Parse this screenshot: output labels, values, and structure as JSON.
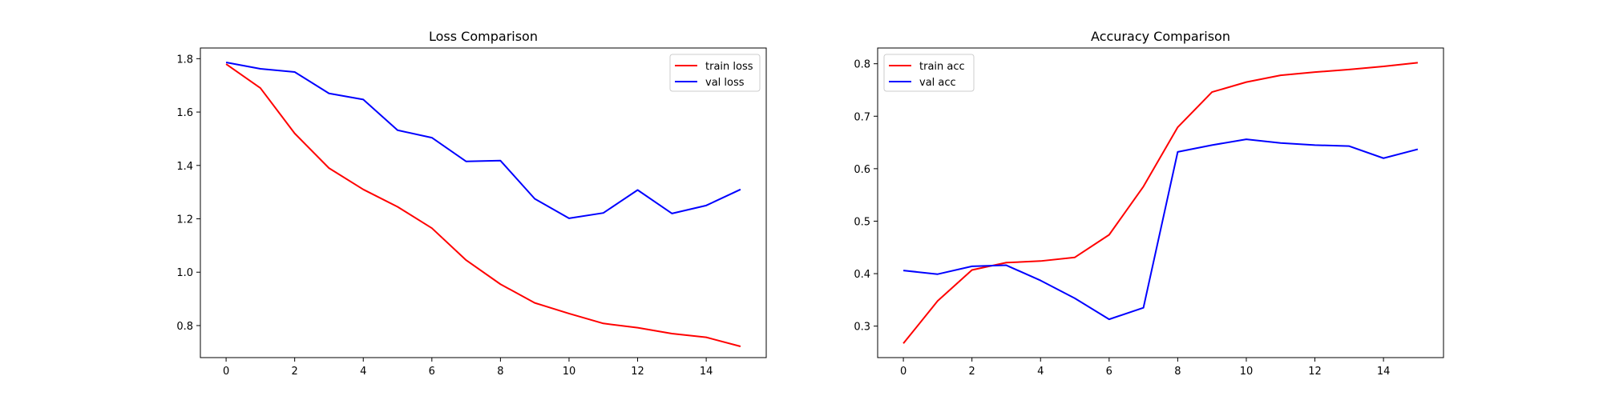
{
  "chart_data": [
    {
      "type": "line",
      "title": "Loss Comparison",
      "xlabel": "",
      "ylabel": "",
      "xlim": [
        -0.75,
        15.75
      ],
      "ylim": [
        0.68,
        1.84
      ],
      "xticks": [
        0,
        2,
        4,
        6,
        8,
        10,
        12,
        14
      ],
      "yticks": [
        0.8,
        1.0,
        1.2,
        1.4,
        1.6,
        1.8
      ],
      "ytick_labels": [
        "0.8",
        "1.0",
        "1.2",
        "1.4",
        "1.6",
        "1.8"
      ],
      "legend_position": "upper right",
      "grid": false,
      "x": [
        0,
        1,
        2,
        3,
        4,
        5,
        6,
        7,
        8,
        9,
        10,
        11,
        12,
        13,
        14,
        15
      ],
      "series": [
        {
          "name": "train loss",
          "color": "#ff0000",
          "values": [
            1.78,
            1.69,
            1.52,
            1.39,
            1.31,
            1.245,
            1.165,
            1.045,
            0.955,
            0.885,
            0.845,
            0.808,
            0.792,
            0.77,
            0.756,
            0.722
          ]
        },
        {
          "name": "val loss",
          "color": "#0000ff",
          "values": [
            1.786,
            1.762,
            1.75,
            1.67,
            1.647,
            1.532,
            1.504,
            1.415,
            1.418,
            1.275,
            1.202,
            1.222,
            1.308,
            1.22,
            1.25,
            1.31
          ]
        }
      ]
    },
    {
      "type": "line",
      "title": "Accuracy Comparison",
      "xlabel": "",
      "ylabel": "",
      "xlim": [
        -0.75,
        15.75
      ],
      "ylim": [
        0.24,
        0.83
      ],
      "xticks": [
        0,
        2,
        4,
        6,
        8,
        10,
        12,
        14
      ],
      "yticks": [
        0.3,
        0.4,
        0.5,
        0.6,
        0.7,
        0.8
      ],
      "ytick_labels": [
        "0.3",
        "0.4",
        "0.5",
        "0.6",
        "0.7",
        "0.8"
      ],
      "legend_position": "upper left",
      "grid": false,
      "x": [
        0,
        1,
        2,
        3,
        4,
        5,
        6,
        7,
        8,
        9,
        10,
        11,
        12,
        13,
        14,
        15
      ],
      "series": [
        {
          "name": "train acc",
          "color": "#ff0000",
          "values": [
            0.267,
            0.348,
            0.407,
            0.421,
            0.424,
            0.431,
            0.474,
            0.566,
            0.679,
            0.746,
            0.765,
            0.778,
            0.784,
            0.789,
            0.795,
            0.802
          ]
        },
        {
          "name": "val acc",
          "color": "#0000ff",
          "values": [
            0.406,
            0.399,
            0.414,
            0.416,
            0.387,
            0.353,
            0.313,
            0.335,
            0.632,
            0.645,
            0.656,
            0.649,
            0.645,
            0.643,
            0.62,
            0.637
          ]
        }
      ]
    }
  ]
}
